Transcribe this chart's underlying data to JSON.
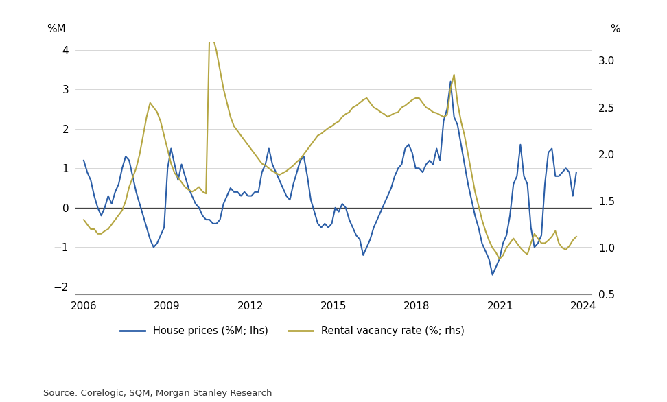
{
  "source_text": "Source: Corelogic, SQM, Morgan Stanley Research",
  "lhs_label": "%M",
  "rhs_label": "%",
  "lhs_ylim": [
    -2.2,
    4.2
  ],
  "rhs_ylim": [
    0.5,
    3.2
  ],
  "lhs_yticks": [
    -2,
    -1,
    0,
    1,
    2,
    3,
    4
  ],
  "rhs_yticks": [
    0.5,
    1.0,
    1.5,
    2.0,
    2.5,
    3.0
  ],
  "xlim_start": 2005.7,
  "xlim_end": 2024.3,
  "xtick_years": [
    2006,
    2009,
    2012,
    2015,
    2018,
    2021,
    2024
  ],
  "house_color": "#2B5EA7",
  "vacancy_color": "#B5A642",
  "legend_house": "House prices (%M; lhs)",
  "legend_vacancy": "Rental vacancy rate (%; rhs)",
  "background_color": "#ffffff",
  "house_prices": [
    1.2,
    0.9,
    0.7,
    0.3,
    0.0,
    -0.2,
    0.0,
    0.3,
    0.1,
    0.4,
    0.6,
    1.0,
    1.3,
    1.2,
    0.8,
    0.4,
    0.1,
    -0.2,
    -0.5,
    -0.8,
    -1.0,
    -0.9,
    -0.7,
    -0.5,
    1.0,
    1.5,
    1.1,
    0.7,
    1.1,
    0.8,
    0.5,
    0.3,
    0.1,
    0.0,
    -0.2,
    -0.3,
    -0.3,
    -0.4,
    -0.4,
    -0.3,
    0.1,
    0.3,
    0.5,
    0.4,
    0.4,
    0.3,
    0.4,
    0.3,
    0.3,
    0.4,
    0.4,
    0.9,
    1.1,
    1.5,
    1.1,
    0.9,
    0.7,
    0.5,
    0.3,
    0.2,
    0.6,
    0.9,
    1.2,
    1.3,
    0.8,
    0.2,
    -0.1,
    -0.4,
    -0.5,
    -0.4,
    -0.5,
    -0.4,
    0.0,
    -0.1,
    0.1,
    0.0,
    -0.3,
    -0.5,
    -0.7,
    -0.8,
    -1.2,
    -1.0,
    -0.8,
    -0.5,
    -0.3,
    -0.1,
    0.1,
    0.3,
    0.5,
    0.8,
    1.0,
    1.1,
    1.5,
    1.6,
    1.4,
    1.0,
    1.0,
    0.9,
    1.1,
    1.2,
    1.1,
    1.5,
    1.2,
    2.2,
    2.5,
    3.2,
    2.3,
    2.1,
    1.6,
    1.1,
    0.6,
    0.2,
    -0.2,
    -0.5,
    -0.9,
    -1.1,
    -1.3,
    -1.7,
    -1.5,
    -1.3,
    -0.9,
    -0.7,
    -0.2,
    0.6,
    0.8,
    1.6,
    0.8,
    0.6,
    -0.5,
    -1.0,
    -0.9,
    -0.7,
    0.6,
    1.4,
    1.5,
    0.8,
    0.8,
    0.9,
    1.0,
    0.9,
    0.3,
    0.9
  ],
  "rental_vacancy": [
    1.3,
    1.25,
    1.2,
    1.2,
    1.15,
    1.15,
    1.18,
    1.2,
    1.25,
    1.3,
    1.35,
    1.4,
    1.5,
    1.65,
    1.75,
    1.85,
    2.0,
    2.2,
    2.4,
    2.55,
    2.5,
    2.45,
    2.35,
    2.2,
    2.05,
    1.9,
    1.8,
    1.75,
    1.7,
    1.65,
    1.62,
    1.6,
    1.62,
    1.65,
    1.6,
    1.58,
    3.3,
    3.25,
    3.1,
    2.9,
    2.7,
    2.55,
    2.4,
    2.3,
    2.25,
    2.2,
    2.15,
    2.1,
    2.05,
    2.0,
    1.95,
    1.9,
    1.88,
    1.85,
    1.82,
    1.8,
    1.78,
    1.8,
    1.82,
    1.85,
    1.88,
    1.92,
    1.95,
    2.0,
    2.05,
    2.1,
    2.15,
    2.2,
    2.22,
    2.25,
    2.28,
    2.3,
    2.33,
    2.35,
    2.4,
    2.43,
    2.45,
    2.5,
    2.52,
    2.55,
    2.58,
    2.6,
    2.55,
    2.5,
    2.48,
    2.45,
    2.43,
    2.4,
    2.42,
    2.44,
    2.45,
    2.5,
    2.52,
    2.55,
    2.58,
    2.6,
    2.6,
    2.55,
    2.5,
    2.48,
    2.45,
    2.44,
    2.42,
    2.4,
    2.42,
    2.7,
    2.85,
    2.55,
    2.35,
    2.2,
    2.0,
    1.8,
    1.6,
    1.45,
    1.3,
    1.18,
    1.08,
    1.0,
    0.95,
    0.88,
    0.92,
    1.0,
    1.05,
    1.1,
    1.05,
    1.0,
    0.96,
    0.93,
    1.05,
    1.15,
    1.1,
    1.05,
    1.05,
    1.08,
    1.12,
    1.18,
    1.05,
    1.0,
    0.98,
    1.02,
    1.08,
    1.12
  ],
  "year_start": 2006.0,
  "year_end": 2023.75
}
